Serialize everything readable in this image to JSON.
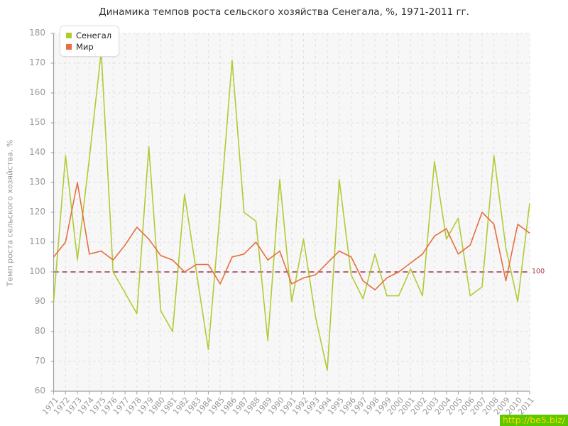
{
  "title": "Динамика темпов роста сельского хозяйства Сенегала, %, 1971-2011 гг.",
  "watermark": "http://be5.biz/",
  "legend": {
    "senegal_label": "Сенегал",
    "world_label": "Мир"
  },
  "refline_label": "100",
  "colors": {
    "senegal": "#b1cb35",
    "world": "#e56f40",
    "refline": "#993350",
    "grid": "#dcdcdc",
    "spine": "#a0a0a0",
    "plot_bg": "#f7f7f7",
    "tick_text": "#999999"
  },
  "chart_data": {
    "type": "line",
    "title": "Динамика темпов роста сельского хозяйства Сенегала, %, 1971-2011 гг.",
    "xlabel": "",
    "ylabel": "Темп роста сельского хозяйства, %",
    "ylim": [
      60,
      180
    ],
    "ytick_step": 10,
    "grid": true,
    "legend_position": "top-left",
    "x": [
      1971,
      1972,
      1973,
      1974,
      1975,
      1976,
      1977,
      1978,
      1979,
      1980,
      1981,
      1982,
      1983,
      1984,
      1985,
      1986,
      1987,
      1988,
      1989,
      1990,
      1991,
      1992,
      1993,
      1994,
      1995,
      1996,
      1997,
      1998,
      1999,
      2000,
      2001,
      2002,
      2003,
      2004,
      2005,
      2006,
      2007,
      2008,
      2009,
      2010,
      2011
    ],
    "series": [
      {
        "name": "Сенегал",
        "values": [
          90,
          139,
          104,
          138,
          174,
          100,
          93,
          86,
          142,
          87,
          80,
          126,
          100,
          74,
          121,
          171,
          120,
          117,
          77,
          131,
          90,
          111,
          85,
          67,
          131,
          99,
          91,
          106,
          92,
          92,
          101,
          92,
          137,
          111,
          118,
          92,
          95,
          139,
          108,
          90,
          123
        ]
      },
      {
        "name": "Мир",
        "values": [
          105,
          110,
          130,
          106,
          107,
          104,
          109,
          115,
          111,
          105.5,
          104,
          100,
          102.5,
          102.5,
          96,
          105,
          106,
          110,
          104,
          107,
          96,
          98,
          99,
          103,
          107,
          105,
          97,
          94,
          98,
          100,
          103,
          106,
          112,
          114.5,
          106,
          109,
          120,
          116,
          97,
          116,
          113
        ]
      }
    ],
    "annotations": [
      {
        "type": "hline",
        "y": 100,
        "label": "100"
      }
    ]
  }
}
